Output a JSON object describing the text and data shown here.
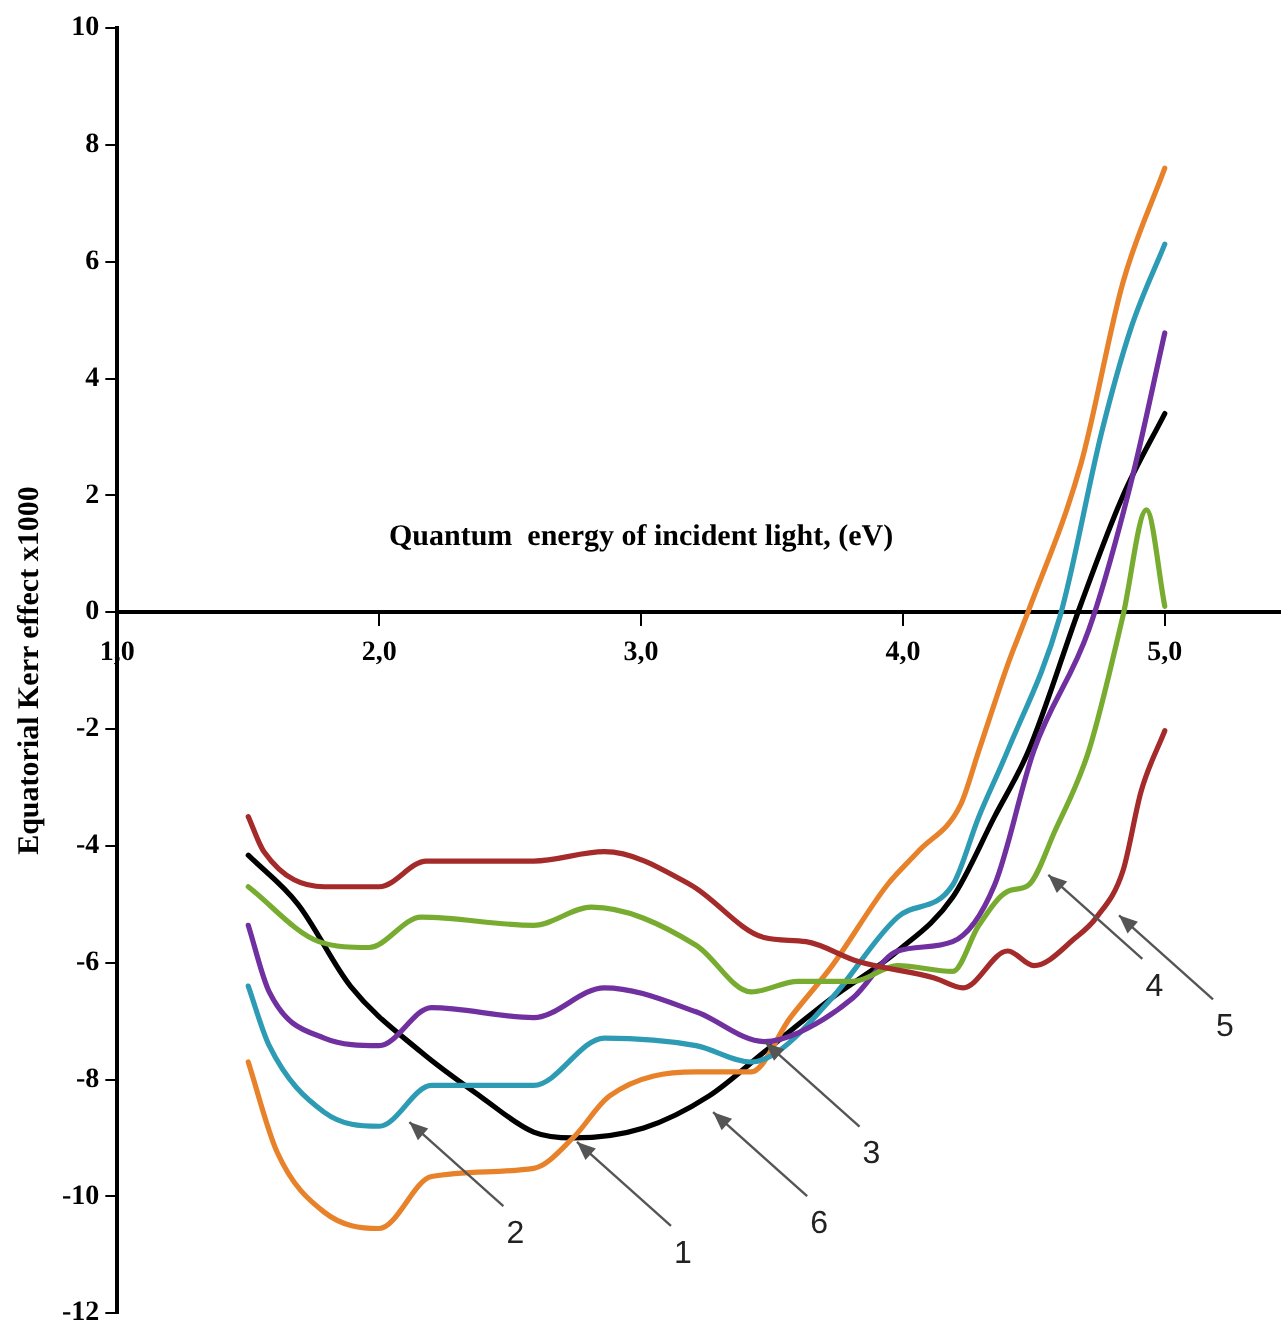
{
  "chart_data": {
    "type": "line",
    "xlabel": "Quantum  energy of incident light, (eV)",
    "ylabel": "Equatorial Kerr effect x1000",
    "xlim": [
      1,
      5.44
    ],
    "xticks": [
      {
        "value": 1,
        "label": "1,0"
      },
      {
        "value": 2,
        "label": "2,0"
      },
      {
        "value": 3,
        "label": "3,0"
      },
      {
        "value": 4,
        "label": "4,0"
      },
      {
        "value": 5,
        "label": "5,0"
      }
    ],
    "ylim": [
      -12,
      10
    ],
    "yticks": [
      -12,
      -10,
      -8,
      -6,
      -4,
      -2,
      0,
      2,
      4,
      6,
      8,
      10
    ],
    "grid": false,
    "legend": false,
    "marker": "none",
    "line_style": "solid",
    "series": [
      {
        "color": "#a52a2a",
        "x": [
          1.5,
          1.56,
          1.79,
          2.0,
          2.18,
          2.59,
          2.86,
          3.19,
          3.47,
          3.63,
          3.83,
          4.12,
          4.23,
          4.4,
          4.5,
          4.66,
          4.74,
          4.84,
          4.91,
          5.0
        ],
        "values": [
          -3.5,
          -4.1,
          -4.7,
          -4.7,
          -4.26,
          -4.26,
          -4.1,
          -4.67,
          -5.57,
          -5.64,
          -5.98,
          -6.26,
          -6.43,
          -5.8,
          -6.05,
          -5.57,
          -5.22,
          -4.43,
          -3.06,
          -2.03
        ]
      },
      {
        "color": "#77ac30",
        "x": [
          1.5,
          1.77,
          1.96,
          2.16,
          2.59,
          2.81,
          3.21,
          3.42,
          3.6,
          3.81,
          3.98,
          4.19,
          4.29,
          4.4,
          4.48,
          4.58,
          4.71,
          4.84,
          4.93,
          5.0
        ],
        "values": [
          -4.7,
          -5.64,
          -5.74,
          -5.22,
          -5.36,
          -5.05,
          -5.7,
          -6.5,
          -6.32,
          -6.32,
          -6.05,
          -6.15,
          -5.36,
          -4.78,
          -4.67,
          -3.75,
          -2.37,
          -0.07,
          1.75,
          0.1
        ]
      },
      {
        "color": "#7030a0",
        "x": [
          1.5,
          1.58,
          1.79,
          2.0,
          2.2,
          2.59,
          2.86,
          3.21,
          3.47,
          3.6,
          3.81,
          3.98,
          4.19,
          4.35,
          4.5,
          4.71,
          4.87,
          5.0
        ],
        "values": [
          -5.36,
          -6.5,
          -7.29,
          -7.42,
          -6.77,
          -6.94,
          -6.43,
          -6.84,
          -7.35,
          -7.2,
          -6.6,
          -5.8,
          -5.64,
          -4.67,
          -2.37,
          -0.3,
          2.2,
          4.78
        ]
      },
      {
        "color": "#2e9bb5",
        "x": [
          1.5,
          1.58,
          1.79,
          2.0,
          2.2,
          2.59,
          2.86,
          3.21,
          3.42,
          3.52,
          3.73,
          3.98,
          4.19,
          4.29,
          4.4,
          4.6,
          4.76,
          4.87,
          5.0
        ],
        "values": [
          -6.4,
          -7.42,
          -8.56,
          -8.8,
          -8.1,
          -8.1,
          -7.29,
          -7.42,
          -7.7,
          -7.53,
          -6.6,
          -5.22,
          -4.67,
          -3.5,
          -2.37,
          -0.07,
          3.1,
          4.85,
          6.3
        ]
      },
      {
        "color": "#e8822a",
        "x": [
          1.5,
          1.61,
          1.79,
          2.0,
          2.2,
          2.59,
          2.74,
          2.88,
          3.21,
          3.42,
          3.57,
          3.73,
          3.94,
          4.06,
          4.22,
          4.29,
          4.4,
          4.48,
          4.68,
          4.84,
          5.0
        ],
        "values": [
          -7.7,
          -9.24,
          -10.27,
          -10.55,
          -9.66,
          -9.52,
          -9.0,
          -8.28,
          -7.87,
          -7.87,
          -6.94,
          -6.05,
          -4.67,
          -4.09,
          -3.3,
          -2.37,
          -0.9,
          0.03,
          2.54,
          5.64,
          7.6
        ]
      },
      {
        "color": "#000000",
        "x": [
          1.5,
          1.69,
          1.89,
          2.16,
          2.39,
          2.59,
          2.74,
          3.01,
          3.26,
          3.47,
          3.73,
          3.98,
          4.19,
          4.35,
          4.48,
          4.68,
          4.84,
          5.0
        ],
        "values": [
          -4.16,
          -5.0,
          -6.4,
          -7.53,
          -8.3,
          -8.9,
          -9.0,
          -8.83,
          -8.28,
          -7.53,
          -6.6,
          -5.8,
          -4.88,
          -3.5,
          -2.37,
          0.14,
          1.99,
          3.4
        ]
      }
    ],
    "annotations": [
      {
        "text": "1",
        "x": 2.74,
        "y": -9.0
      },
      {
        "text": "2",
        "x": 2.1,
        "y": -8.66
      },
      {
        "text": "3",
        "x": 3.46,
        "y": -7.3
      },
      {
        "text": "4",
        "x": 4.54,
        "y": -4.43
      },
      {
        "text": "5",
        "x": 4.81,
        "y": -5.12
      },
      {
        "text": "6",
        "x": 3.26,
        "y": -8.49
      }
    ]
  }
}
